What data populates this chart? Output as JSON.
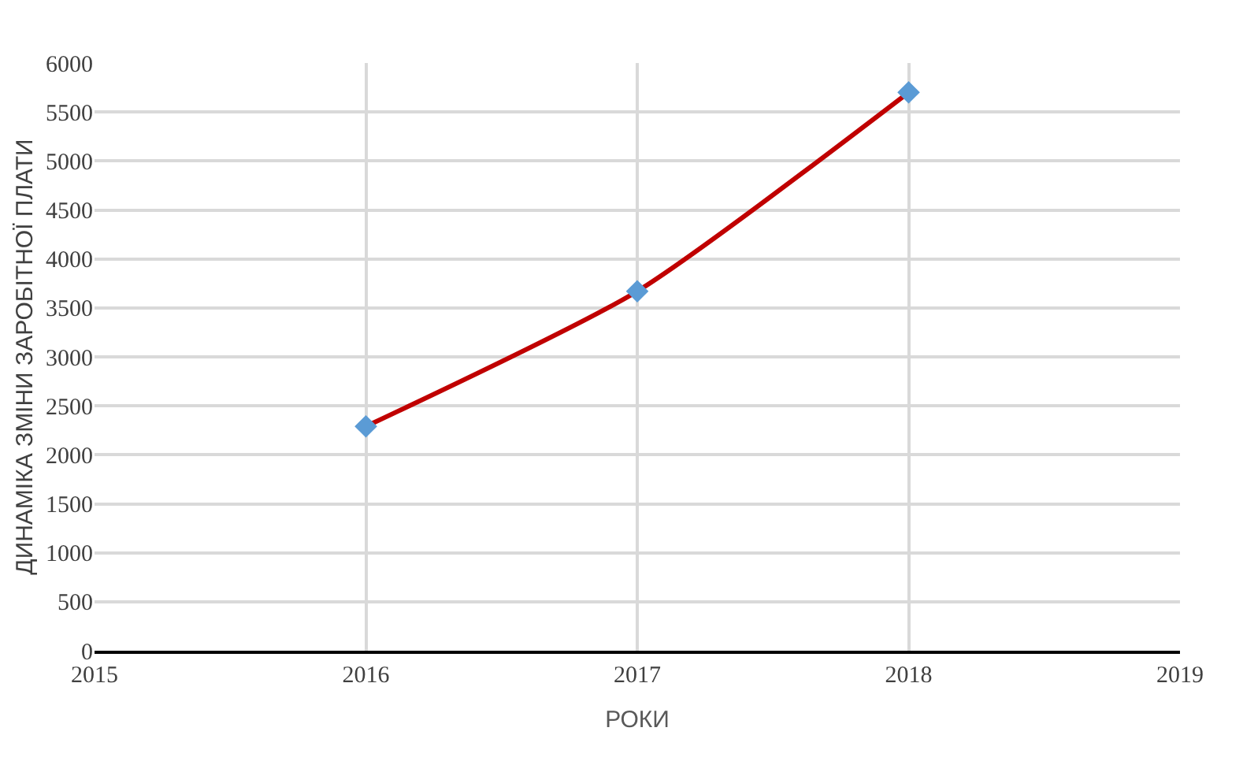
{
  "chart_data": {
    "type": "line",
    "xlabel": "РОКИ",
    "ylabel": "ДИНАМІКА ЗМІНИ ЗАРОБІТНОЇ ПЛАТИ",
    "x": [
      2016,
      2017,
      2018
    ],
    "series": [
      {
        "color": "#c00000",
        "colors": [
          "#5b9bd5",
          "#5b9bd5",
          "#5b9bd5"
        ],
        "values": [
          2290,
          3670,
          5700
        ]
      }
    ],
    "xlim": [
      2015,
      2019
    ],
    "xticks": [
      2015,
      2016,
      2017,
      2018,
      2019
    ],
    "ylim": [
      0,
      6000
    ],
    "yticks": [
      0,
      500,
      1000,
      1500,
      2000,
      2500,
      3000,
      3500,
      4000,
      4500,
      5000,
      5500,
      6000
    ],
    "grid": true,
    "marker": "diamond",
    "line_style": "solid",
    "legend": false
  }
}
